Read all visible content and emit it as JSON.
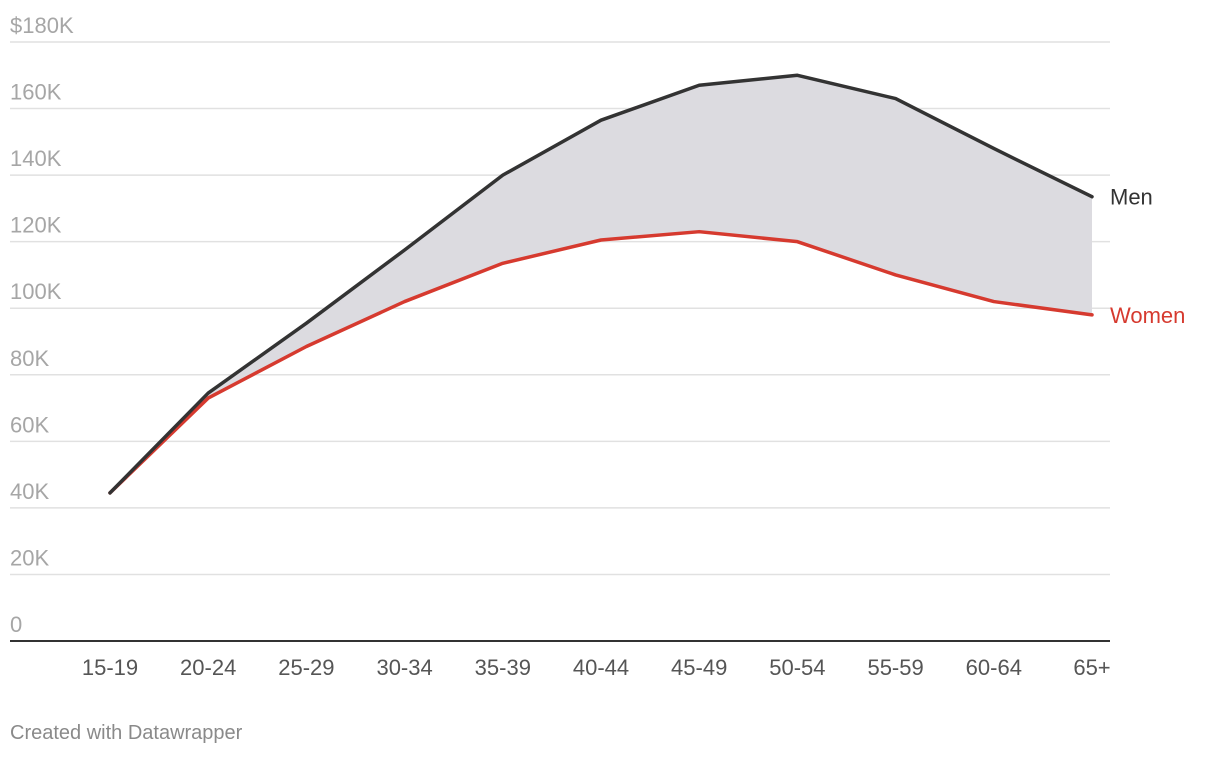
{
  "chart_data": {
    "type": "line",
    "categories": [
      "15-19",
      "20-24",
      "25-29",
      "30-34",
      "35-39",
      "40-44",
      "45-49",
      "50-54",
      "55-59",
      "60-64",
      "65+"
    ],
    "series": [
      {
        "name": "Men",
        "color": "#333333",
        "values": [
          44500,
          74500,
          95500,
          117500,
          140000,
          156500,
          167000,
          170000,
          163000,
          148000,
          133500
        ]
      },
      {
        "name": "Women",
        "color": "#d63a2f",
        "values": [
          44500,
          73000,
          88500,
          102000,
          113500,
          120500,
          123000,
          120000,
          110000,
          102000,
          98000
        ]
      }
    ],
    "y_ticks": [
      0,
      20000,
      40000,
      60000,
      80000,
      100000,
      120000,
      140000,
      160000,
      180000
    ],
    "y_tick_labels": [
      "0",
      "20K",
      "40K",
      "60K",
      "80K",
      "100K",
      "120K",
      "140K",
      "160K",
      "$180K"
    ],
    "ylim": [
      0,
      180000
    ],
    "xlabel": "",
    "ylabel": "",
    "grid": true,
    "gap_fill": true,
    "fill_color": "#dcdbe0",
    "legend": "direct labels at line ends"
  },
  "footer": {
    "credit": "Created with Datawrapper"
  }
}
